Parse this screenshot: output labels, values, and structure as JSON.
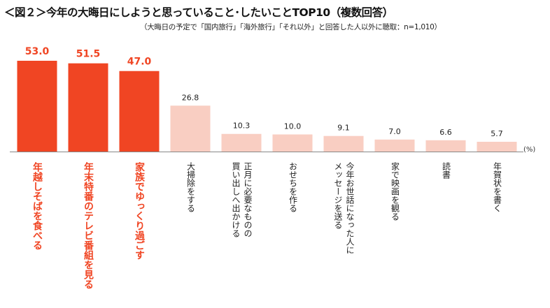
{
  "title": "＜図２＞今年の大晦日にしようと思っていること･したいことTOP10（複数回答）",
  "subtitle": "（大晦日の予定で「国内旅行」「海外旅行」「それ以外」と回答した人以外に聴取：n=1,010）",
  "colors": {
    "highlight": "#F04523",
    "normal": "#F9CEC2",
    "axis": "#888888"
  },
  "chart_data": {
    "type": "bar",
    "title": "今年の大晦日にしようと思っていること･したいことTOP10（複数回答）",
    "unit": "(%)",
    "categories": [
      "年越しそばを食べる",
      "年末特番のテレビ番組を見る",
      "家族でゆっくり過ごす",
      "大掃除をする",
      "正月に必要なものの\n買い出しへ出かける",
      "おせちを作る",
      "今年お世話になった人に\nメッセージを送る",
      "家で映画を観る",
      "読書",
      "年賀状を書く"
    ],
    "values": [
      53.0,
      51.5,
      47.0,
      26.8,
      10.3,
      10.0,
      9.1,
      7.0,
      6.6,
      5.7
    ],
    "labels": [
      "53.0",
      "51.5",
      "47.0",
      "26.8",
      "10.3",
      "10.0",
      "9.1",
      "7.0",
      "6.6",
      "5.7"
    ],
    "highlighted": [
      true,
      true,
      true,
      false,
      false,
      false,
      false,
      false,
      false,
      false
    ],
    "ylim": [
      0,
      60
    ]
  }
}
